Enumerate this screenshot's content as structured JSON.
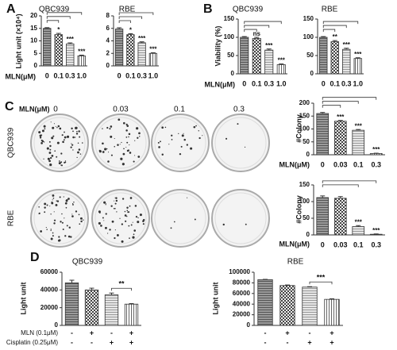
{
  "panels": [
    "A",
    "B",
    "C",
    "D"
  ],
  "colony_images": {
    "header": "MLN(μM)",
    "doses": [
      "0",
      "0.03",
      "0.1",
      "0.3"
    ],
    "rows": [
      "QBC939",
      "RBE"
    ]
  },
  "chart_data": [
    {
      "type": "bar",
      "title": "QBC939",
      "ylabel": "Light unit (×10⁴)",
      "xlabel": "MLN(μM)",
      "categories": [
        "0",
        "0.1",
        "0.3",
        "1.0"
      ],
      "values": [
        15,
        12.5,
        8.8,
        4
      ],
      "errors": [
        0.3,
        0.5,
        0.4,
        0.3
      ],
      "ylim": [
        0,
        20
      ],
      "yticks": [
        0,
        5,
        10,
        15,
        20
      ],
      "significance": [
        null,
        "*",
        "***",
        "***"
      ],
      "comparison": "control",
      "color": "#333333"
    },
    {
      "type": "bar",
      "title": "RBE",
      "categories": [
        "0",
        "0.1",
        "0.3",
        "1.0"
      ],
      "values": [
        5.9,
        5.0,
        3.7,
        2.0
      ],
      "errors": [
        0.2,
        0.15,
        0.15,
        0.1
      ],
      "ylim": [
        0,
        8
      ],
      "yticks": [
        0,
        2,
        4,
        6,
        8
      ],
      "significance": [
        null,
        "*",
        "***",
        "***"
      ],
      "comparison": "control",
      "color": "#333333"
    },
    {
      "type": "bar",
      "title": "QBC939",
      "ylabel": "Viability (%)",
      "xlabel": "MLN(μM)",
      "categories": [
        "0",
        "0.1",
        "0.3",
        "1.0"
      ],
      "values": [
        100,
        97,
        65,
        25
      ],
      "errors": [
        2,
        3,
        3,
        2
      ],
      "ylim": [
        0,
        150
      ],
      "yticks": [
        0,
        50,
        100,
        150
      ],
      "significance": [
        null,
        "ns",
        "***",
        "***"
      ],
      "comparison": "control",
      "color": "#333333"
    },
    {
      "type": "bar",
      "title": "RBE",
      "categories": [
        "0",
        "0.1",
        "0.3",
        "1.0"
      ],
      "values": [
        100,
        88,
        67,
        42
      ],
      "errors": [
        2,
        3,
        3,
        2
      ],
      "ylim": [
        0,
        150
      ],
      "yticks": [
        0,
        50,
        100,
        150
      ],
      "significance": [
        null,
        "**",
        "***",
        "***"
      ],
      "comparison": "control",
      "color": "#333333"
    },
    {
      "type": "bar",
      "ylabel": "#Colony",
      "xlabel": "MLN(μM)",
      "categories": [
        "0",
        "0.03",
        "0.1",
        "0.3"
      ],
      "values": [
        160,
        130,
        95,
        5
      ],
      "errors": [
        4,
        3,
        3,
        1
      ],
      "ylim": [
        0,
        200
      ],
      "yticks": [
        0,
        50,
        100,
        150,
        200
      ],
      "significance": [
        null,
        "***",
        "***",
        "***"
      ],
      "comparison": "control",
      "color": "#333333"
    },
    {
      "type": "bar",
      "ylabel": "#Colony",
      "xlabel": "MLN(μM)",
      "categories": [
        "0",
        "0.03",
        "0.1",
        "0.3"
      ],
      "values": [
        112,
        110,
        25,
        2
      ],
      "errors": [
        5,
        5,
        3,
        1
      ],
      "ylim": [
        0,
        150
      ],
      "yticks": [
        0,
        50,
        100,
        150
      ],
      "significance": [
        null,
        null,
        "***",
        "***"
      ],
      "comparison": "control",
      "color": "#333333"
    },
    {
      "type": "bar",
      "title": "QBC939",
      "ylabel": "Light unit",
      "values": [
        48000,
        40000,
        34500,
        24000
      ],
      "errors": [
        3000,
        2000,
        2000,
        600
      ],
      "ylim": [
        0,
        60000
      ],
      "yticks": [
        0,
        20000,
        40000,
        60000
      ],
      "significance": [
        null,
        null,
        null,
        "**"
      ],
      "comparison": "adjacent",
      "color": "#333333",
      "conditions": [
        {
          "label": "MLN (0.1μM)",
          "signs": [
            "-",
            "+",
            "-",
            "+"
          ]
        },
        {
          "label": "Cisplatin (0.25μM)",
          "signs": [
            "-",
            "-",
            "+",
            "+"
          ]
        }
      ]
    },
    {
      "type": "bar",
      "title": "RBE",
      "ylabel": "Light unit",
      "values": [
        86000,
        75000,
        72000,
        49000
      ],
      "errors": [
        600,
        1000,
        800,
        1000
      ],
      "ylim": [
        0,
        100000
      ],
      "yticks": [
        0,
        20000,
        40000,
        60000,
        80000,
        100000
      ],
      "significance": [
        null,
        null,
        null,
        "***"
      ],
      "comparison": "adjacent",
      "color": "#333333",
      "conditions": [
        {
          "signs": [
            "-",
            "+",
            "-",
            "+"
          ]
        },
        {
          "signs": [
            "-",
            "-",
            "+",
            "+"
          ]
        }
      ]
    }
  ]
}
